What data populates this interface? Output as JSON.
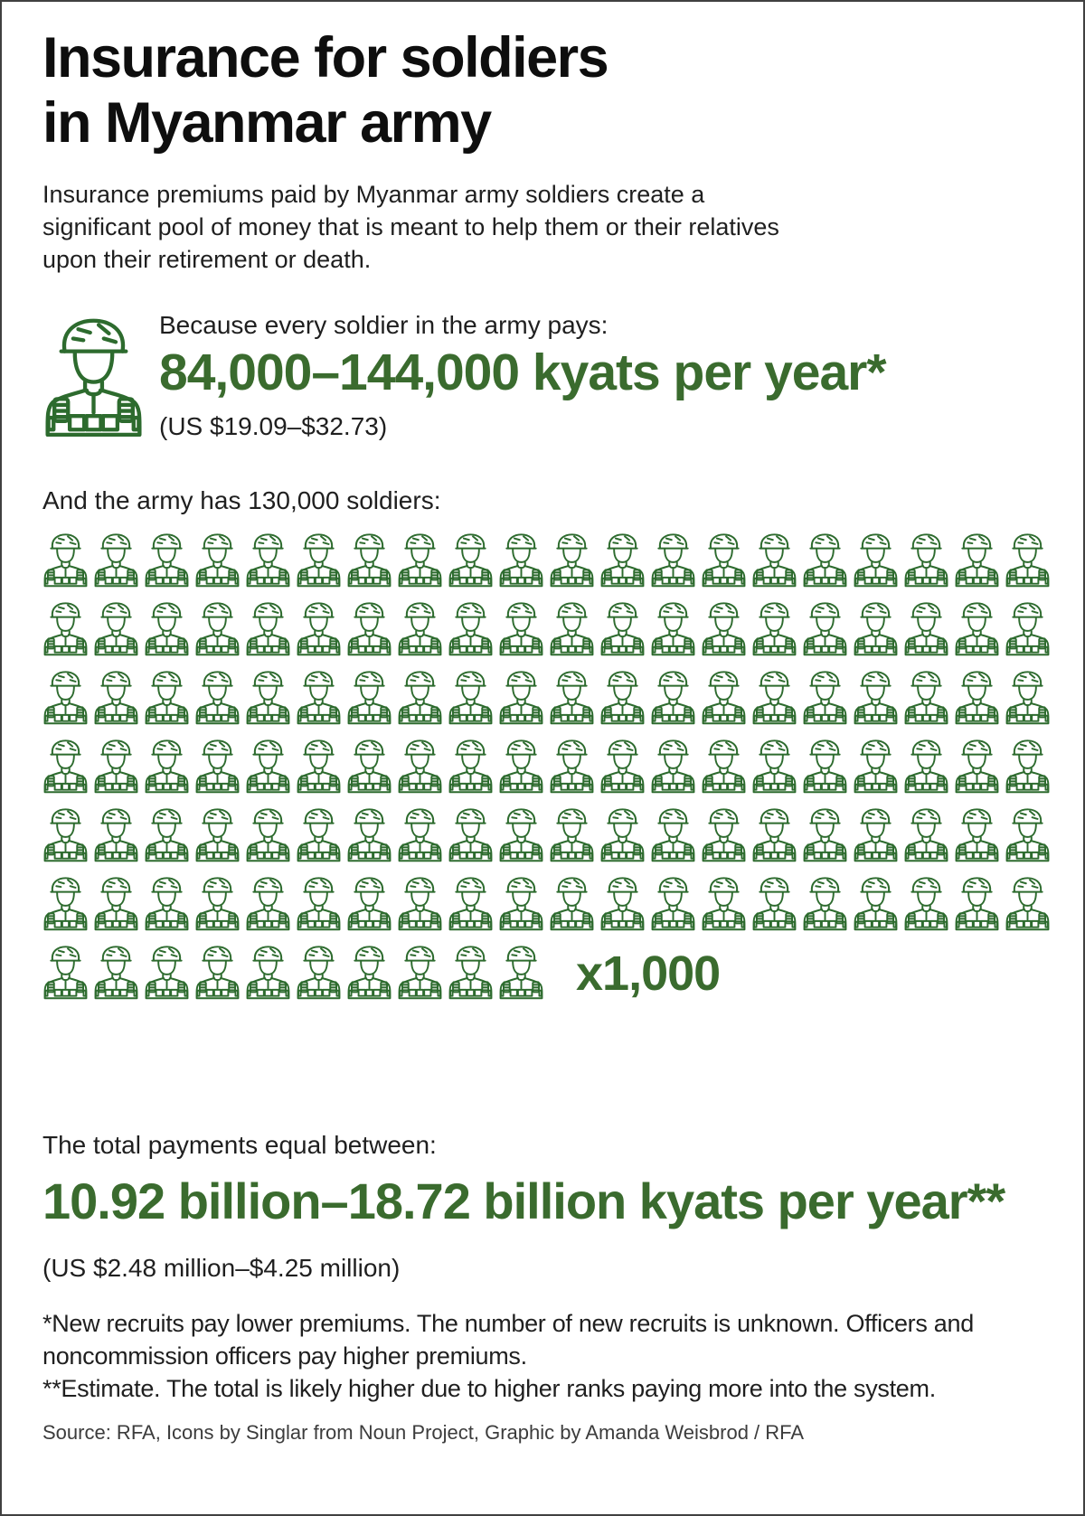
{
  "colors": {
    "accent_green": "#3a6b2e",
    "icon_green": "#2d6b2e",
    "text_dark": "#1c1c1c",
    "source_gray": "#3c3c3c",
    "page_border": "#414141",
    "background": "#ffffff"
  },
  "header": {
    "title": "Insurance for soldiers\nin Myanmar army",
    "intro": "Insurance premiums paid by Myanmar army soldiers create a significant pool of money that is meant to help them or their relatives upon their retirement or death."
  },
  "premium": {
    "icon": "soldier-icon",
    "lead": "Because every soldier in the army pays:",
    "amount": "84,000–144,000 kyats per year*",
    "usd_equivalent": "(US $19.09–$32.73)"
  },
  "army": {
    "lead": "And the army has 130,000 soldiers:",
    "icon": "soldier-icon",
    "rows": [
      20,
      20,
      20,
      20,
      20,
      20,
      10
    ],
    "icon_count": 130,
    "multiplier_label": "x1,000"
  },
  "total": {
    "lead": "The total payments equal between:",
    "amount": "10.92 billion–18.72 billion kyats per year**",
    "usd_equivalent": "(US $2.48 million–$4.25 million)"
  },
  "footnotes": [
    "*New recruits pay lower premiums. The number of new recruits is unknown. Officers and noncommission officers pay higher premiums.",
    "**Estimate. The total is likely higher due to higher ranks paying more into the system."
  ],
  "source": "Source: RFA, Icons by Singlar from Noun Project, Graphic by Amanda Weisbrod / RFA",
  "chart_data": {
    "type": "pictogram",
    "title": "Insurance for soldiers in Myanmar army",
    "icon": "soldier",
    "icon_unit_value": 1000,
    "icon_count": 130,
    "icons_per_row": 20,
    "row_counts": [
      20,
      20,
      20,
      20,
      20,
      20,
      10
    ],
    "total_soldiers": 130000,
    "premium_per_soldier_kyats_per_year": {
      "min": 84000,
      "max": 144000
    },
    "premium_per_soldier_usd_per_year": {
      "min": 19.09,
      "max": 32.73
    },
    "total_payments_kyats_billion_per_year": {
      "min": 10.92,
      "max": 18.72
    },
    "total_payments_usd_million_per_year": {
      "min": 2.48,
      "max": 4.25
    }
  }
}
